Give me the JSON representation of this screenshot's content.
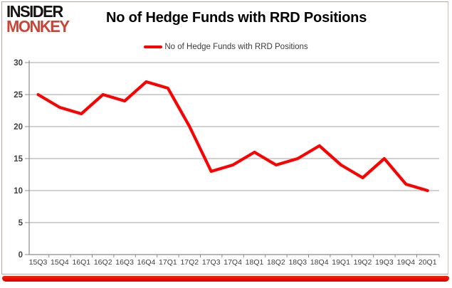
{
  "logo": {
    "line1": "INSIDER",
    "line2": "MONKEY"
  },
  "header": {
    "title": "No of Hedge Funds with RRD Positions"
  },
  "legend": {
    "label": "No of Hedge Funds with RRD Positions"
  },
  "chart_data": {
    "type": "line",
    "title": "No of Hedge Funds with RRD Positions",
    "categories": [
      "15Q3",
      "15Q4",
      "16Q1",
      "16Q2",
      "16Q3",
      "16Q4",
      "17Q1",
      "17Q2",
      "17Q3",
      "17Q4",
      "18Q1",
      "18Q2",
      "18Q3",
      "18Q4",
      "19Q1",
      "19Q2",
      "19Q3",
      "19Q4",
      "20Q1"
    ],
    "series": [
      {
        "name": "No of Hedge Funds with RRD Positions",
        "values": [
          25,
          23,
          22,
          25,
          24,
          27,
          26,
          20,
          13,
          14,
          16,
          14,
          15,
          17,
          14,
          12,
          15,
          11,
          10
        ],
        "color": "#fe0000"
      }
    ],
    "ylim": [
      0,
      30
    ],
    "ytick_interval": 5,
    "yticks": [
      0,
      5,
      10,
      15,
      20,
      25,
      30
    ],
    "grid": "horizontal",
    "legend_position": "top",
    "markers": false
  },
  "colors": {
    "line": "#fe0000",
    "gridline": "#a6a6a6",
    "axis": "#8c8c8c",
    "tick_label": "#404040",
    "logo_red": "#cc4435",
    "accent_bar": "#e60000",
    "border": "#b9a69e"
  }
}
